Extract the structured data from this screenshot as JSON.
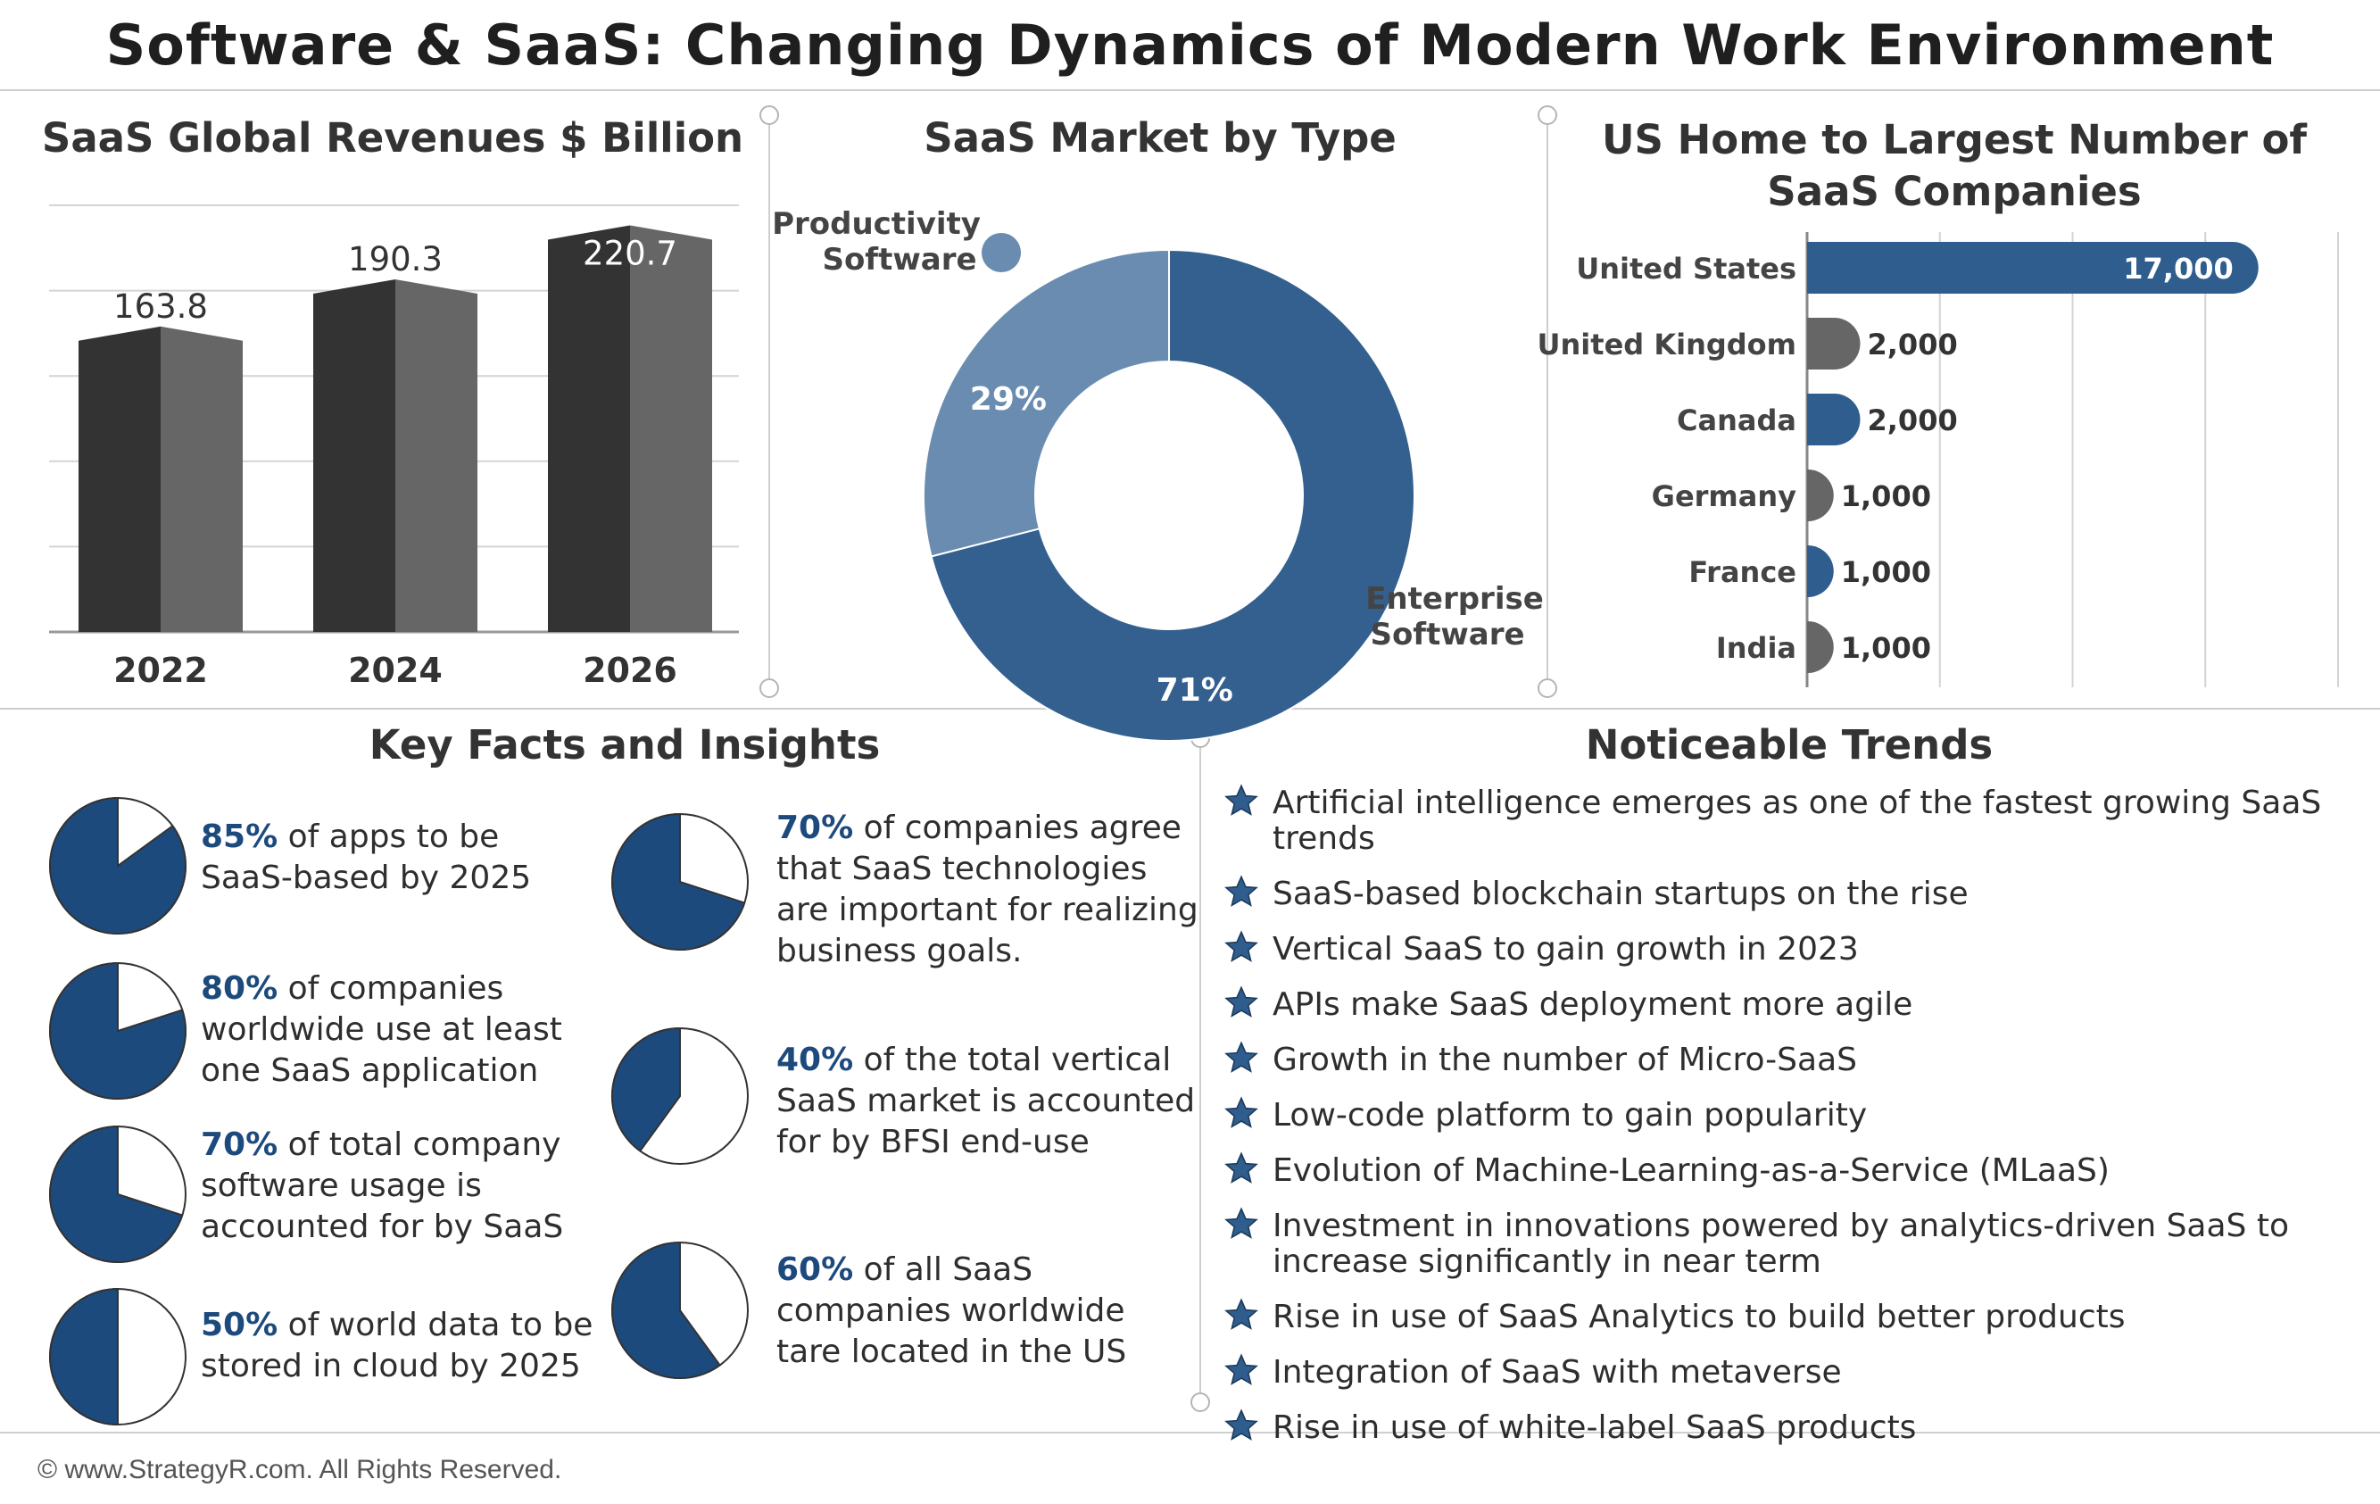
{
  "page": {
    "title": "Software & SaaS: Changing Dynamics of Modern Work Environment",
    "footer": "© www.StrategyR.com. All Rights Reserved."
  },
  "chart_data": [
    {
      "type": "bar",
      "title": "SaaS Global Revenues $ Billion",
      "categories": [
        "2022",
        "2024",
        "2026"
      ],
      "values": [
        163.8,
        190.3,
        220.7
      ],
      "value_labels": [
        "163.8",
        "190.3",
        "220.7"
      ],
      "ylim": [
        0,
        240
      ],
      "grid": true,
      "colors": {
        "front": "#333333",
        "side": "#666666"
      }
    },
    {
      "type": "pie",
      "title": "SaaS Market by Type",
      "slices": [
        {
          "name": "Enterprise Software",
          "label_line1": "Enterprise",
          "label_line2": "Software",
          "value": 71,
          "value_label": "71%",
          "color": "#33608f"
        },
        {
          "name": "Productivity Software",
          "label_line1": "Productivity",
          "label_line2": "Software",
          "value": 29,
          "value_label": "29%",
          "color": "#6a8cb0"
        }
      ]
    },
    {
      "type": "bar",
      "title_line1": "US Home to Largest Number of",
      "title_line2": "SaaS Companies",
      "categories": [
        "United States",
        "United Kingdom",
        "Canada",
        "Germany",
        "France",
        "India"
      ],
      "values": [
        17000,
        2000,
        2000,
        1000,
        1000,
        1000
      ],
      "value_labels": [
        "17,000",
        "2,000",
        "2,000",
        "1,000",
        "1,000",
        "1,000"
      ],
      "colors": [
        "#2f5e8e",
        "#666666",
        "#2f5e8e",
        "#666666",
        "#2f5e8e",
        "#666666"
      ],
      "xlim": [
        0,
        20000
      ],
      "grid": true
    }
  ],
  "facts": {
    "title": "Key Facts and Insights",
    "items": [
      {
        "pct": "85%",
        "value": 85,
        "lines": [
          "of apps to be",
          "SaaS-based by 2025"
        ]
      },
      {
        "pct": "80%",
        "value": 80,
        "lines": [
          "of companies",
          "worldwide use at least",
          "one SaaS application"
        ]
      },
      {
        "pct": "70%",
        "value": 70,
        "lines": [
          "of total company",
          "software usage is",
          "accounted for by SaaS"
        ]
      },
      {
        "pct": "50%",
        "value": 50,
        "lines": [
          "of world data to be",
          "stored in cloud by 2025"
        ]
      },
      {
        "pct": "70%",
        "value": 70,
        "lines": [
          "of companies agree",
          "that SaaS technologies",
          "are important for realizing",
          "business goals."
        ]
      },
      {
        "pct": "40%",
        "value": 40,
        "lines": [
          "of the total vertical",
          "SaaS market is accounted",
          "for by BFSI end-use"
        ]
      },
      {
        "pct": "60%",
        "value": 60,
        "lines": [
          "of all SaaS",
          "companies worldwide",
          "tare located in the US"
        ]
      }
    ],
    "pie_color": "#1d4a7d"
  },
  "trends": {
    "title": "Noticeable Trends",
    "star_color": "#2f5e8e",
    "items": [
      "Artificial intelligence emerges as one of the fastest growing SaaS trends",
      "SaaS-based blockchain startups on the rise",
      "Vertical SaaS to gain growth in 2023",
      "APIs make SaaS deployment more agile",
      "Growth in the number of Micro-SaaS",
      "Low-code platform to gain popularity",
      "Evolution of Machine-Learning-as-a-Service (MLaaS)",
      "Investment in innovations powered by analytics-driven SaaS to increase significantly in near term",
      "Rise in use of SaaS Analytics to build better products",
      "Integration of SaaS with metaverse",
      "Rise in use of white-label SaaS products"
    ]
  }
}
